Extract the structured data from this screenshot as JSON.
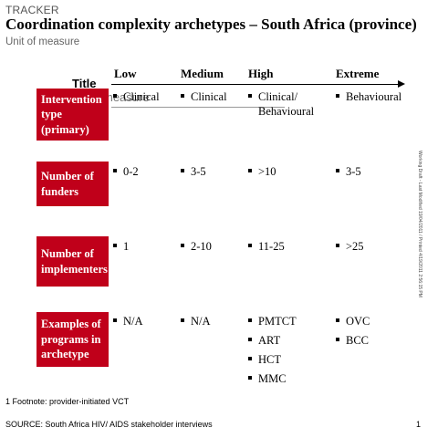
{
  "header": {
    "tracker": "TRACKER",
    "title": "Coordination complexity archetypes – South Africa (province)",
    "unit": "Unit of measure",
    "ghost_title": "Title",
    "ghost_measure": "measure"
  },
  "columns": [
    "Low",
    "Medium",
    "High",
    "Extreme"
  ],
  "rows": [
    {
      "label": "Intervention type (primary)",
      "cells": [
        [
          "Clinical"
        ],
        [
          "Clinical"
        ],
        [
          "Clinical/ Behavioural"
        ],
        [
          "Behavioural"
        ]
      ]
    },
    {
      "label": "Number of funders",
      "cells": [
        [
          "0-2"
        ],
        [
          "3-5"
        ],
        [
          ">10"
        ],
        [
          "3-5"
        ]
      ]
    },
    {
      "label": "Number of implementers",
      "cells": [
        [
          "1"
        ],
        [
          "2-10"
        ],
        [
          "11-25"
        ],
        [
          ">25"
        ]
      ]
    },
    {
      "label": "Examples of programs in archetype",
      "cells": [
        [
          "N/A"
        ],
        [
          "N/A"
        ],
        [
          "PMTCT",
          "ART",
          "HCT",
          "MMC"
        ],
        [
          "OVC",
          "BCC"
        ]
      ]
    }
  ],
  "sidebar_text": "Working Draft - Last Modified 19/04/2011 / Printed 4/19/2011 2:56:15 PM",
  "footer": {
    "footnote": "1 Footnote: provider-initiated VCT",
    "source": "SOURCE: South Africa HIV/ AIDS stakeholder interviews",
    "page": "1"
  }
}
